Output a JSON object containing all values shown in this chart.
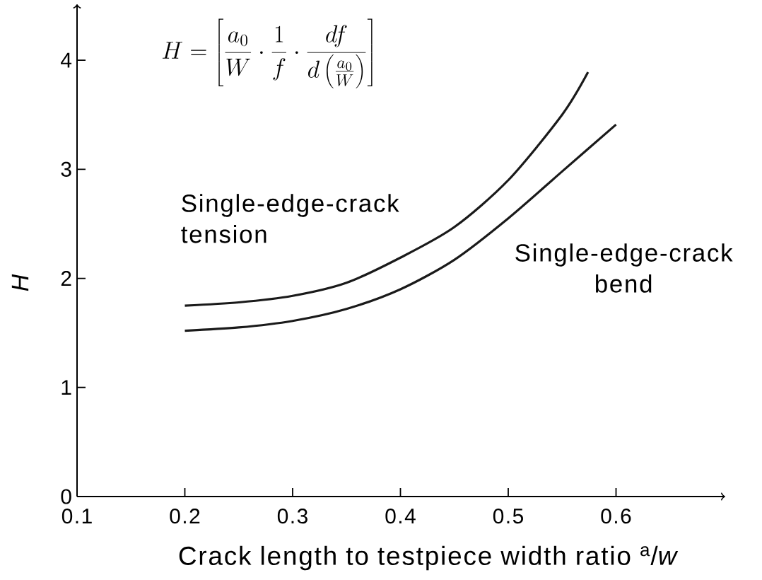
{
  "chart_data": {
    "type": "line",
    "xlabel": "Crack length to testpiece width ratio $^{a}$/*w*",
    "ylabel": "H",
    "annotations": [
      "H=\\left[\\frac{a_0}{W}\\cdot\\frac{1}{f}\\cdot\\frac{df}{d\\left(\\frac{a_0}{W}\\right)}\\right]"
    ],
    "series": [
      {
        "name": "Single-edge-crack tension",
        "color": "#1a1a1a",
        "x": [
          0.2,
          0.25,
          0.3,
          0.35,
          0.4,
          0.45,
          0.5,
          0.55,
          0.574
        ],
        "values": [
          1.75,
          1.78,
          1.84,
          1.96,
          2.19,
          2.47,
          2.9,
          3.5,
          3.89
        ]
      },
      {
        "name": "Single-edge-crack bend",
        "color": "#1a1a1a",
        "x": [
          0.2,
          0.25,
          0.3,
          0.35,
          0.4,
          0.45,
          0.5,
          0.55,
          0.6
        ],
        "values": [
          1.52,
          1.55,
          1.61,
          1.72,
          1.9,
          2.17,
          2.55,
          2.98,
          3.41
        ]
      }
    ],
    "xlim": [
      0.1,
      0.7
    ],
    "ylim": [
      0,
      4.5
    ],
    "xticks": [
      0.1,
      0.2,
      0.3,
      0.4,
      0.5,
      0.6
    ],
    "yticks": [
      0,
      1,
      2,
      3,
      4
    ],
    "marker": "none",
    "line_style": "solid"
  }
}
